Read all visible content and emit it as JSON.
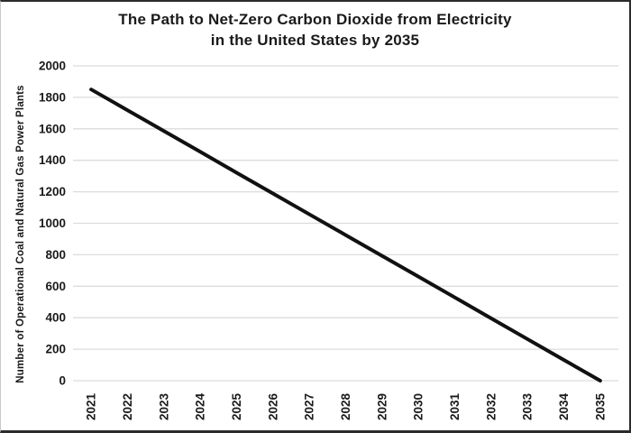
{
  "figure": {
    "background": "#ffffff",
    "border_color": "#2b2b2b"
  },
  "chart_data": {
    "type": "line",
    "title": "The Path to Net-Zero Carbon Dioxide from Electricity in the United States by 2035",
    "title_lines": [
      "The Path to Net-Zero Carbon Dioxide from Electricity",
      "in the United States by 2035"
    ],
    "xlabel": "",
    "ylabel": "Number of Operational Coal and Natural Gas Power Plants",
    "categories": [
      "2021",
      "2022",
      "2023",
      "2024",
      "2025",
      "2026",
      "2027",
      "2028",
      "2029",
      "2030",
      "2031",
      "2032",
      "2033",
      "2034",
      "2035"
    ],
    "values": [
      1850,
      1718,
      1586,
      1454,
      1321,
      1189,
      1057,
      925,
      793,
      661,
      529,
      396,
      264,
      132,
      0
    ],
    "key_points": [
      {
        "x": "2021",
        "y": 1850
      },
      {
        "x": "2035",
        "y": 0
      }
    ],
    "shape_note": "single straight line declining linearly from about 1850 in 2021 to 0 in 2035",
    "ylim": [
      0,
      2000
    ],
    "y_ticks": [
      0,
      200,
      400,
      600,
      800,
      1000,
      1200,
      1400,
      1600,
      1800,
      2000
    ],
    "ytick_step": 200,
    "grid": "horizontal",
    "legend": "none",
    "line_color": "#111111",
    "line_width": 4,
    "grid_color": "#dcdcdc",
    "text_color": "#1a1a1a"
  }
}
